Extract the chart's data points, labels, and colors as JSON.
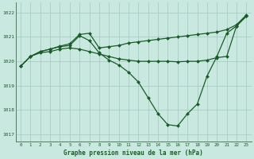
{
  "title": "Graphe pression niveau de la mer (hPa)",
  "background_color": "#c8e8e0",
  "grid_color": "#a8ccc4",
  "line_color": "#1a5c28",
  "marker_color": "#1a5c28",
  "xlim": [
    -0.5,
    23.5
  ],
  "ylim": [
    1016.7,
    1022.4
  ],
  "yticks": [
    1017,
    1018,
    1019,
    1020,
    1021,
    1022
  ],
  "xticks": [
    0,
    1,
    2,
    3,
    4,
    5,
    6,
    7,
    8,
    9,
    10,
    11,
    12,
    13,
    14,
    15,
    16,
    17,
    18,
    19,
    20,
    21,
    22,
    23
  ],
  "series": [
    {
      "x": [
        0,
        1,
        2,
        3,
        4,
        5,
        6,
        7,
        8,
        9,
        10,
        11,
        12,
        13,
        14,
        15,
        16,
        17,
        18,
        19,
        20,
        21,
        22,
        23
      ],
      "y": [
        1019.8,
        1020.2,
        1020.4,
        1020.5,
        1020.6,
        1020.65,
        1021.05,
        1020.85,
        1020.35,
        1020.05,
        1019.85,
        1019.55,
        1019.15,
        1018.5,
        1017.85,
        1017.4,
        1017.35,
        1017.85,
        1018.25,
        1019.4,
        1020.2,
        1021.15,
        1021.45,
        1021.85
      ],
      "marker": "D",
      "markersize": 2.0,
      "linewidth": 0.9
    },
    {
      "x": [
        0,
        1,
        2,
        3,
        4,
        5,
        6,
        7,
        8,
        9,
        10,
        11,
        12,
        13,
        14,
        15,
        16,
        17,
        18,
        19,
        20,
        21,
        22,
        23
      ],
      "y": [
        1019.8,
        1020.2,
        1020.35,
        1020.4,
        1020.5,
        1020.55,
        1020.5,
        1020.4,
        1020.3,
        1020.2,
        1020.1,
        1020.05,
        1020.0,
        1020.0,
        1020.0,
        1020.0,
        1019.98,
        1020.0,
        1020.0,
        1020.05,
        1020.15,
        1020.2,
        1021.45,
        1021.85
      ],
      "marker": "D",
      "markersize": 2.0,
      "linewidth": 0.9
    },
    {
      "x": [
        0,
        1,
        2,
        3,
        4,
        5,
        6,
        7,
        8,
        9,
        10,
        11,
        12,
        13,
        14,
        15,
        16,
        17,
        18,
        19,
        20,
        21,
        22,
        23
      ],
      "y": [
        1019.8,
        1020.2,
        1020.4,
        1020.5,
        1020.62,
        1020.72,
        1021.1,
        1021.15,
        1020.55,
        1020.6,
        1020.65,
        1020.75,
        1020.8,
        1020.85,
        1020.9,
        1020.95,
        1021.0,
        1021.05,
        1021.1,
        1021.15,
        1021.2,
        1021.3,
        1021.5,
        1021.9
      ],
      "marker": "D",
      "markersize": 2.0,
      "linewidth": 0.9
    }
  ]
}
